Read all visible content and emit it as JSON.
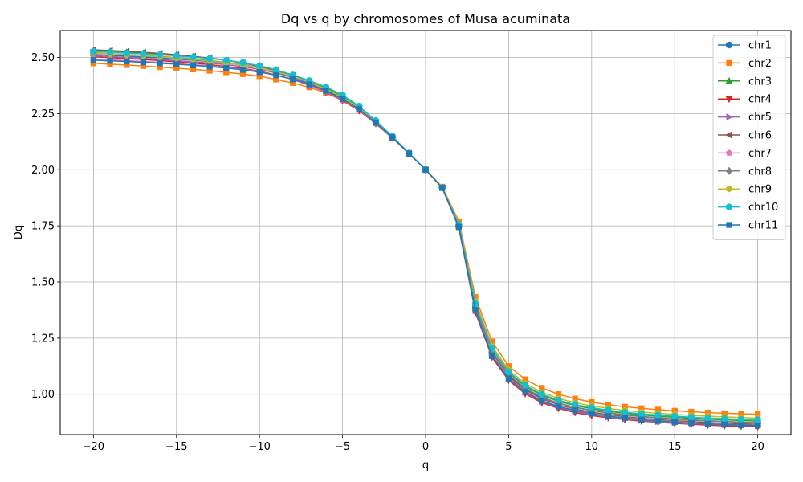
{
  "chart_data": {
    "type": "line",
    "title": "Dq vs q by chromosomes of Musa acuminata",
    "xlabel": "q",
    "ylabel": "Dq",
    "xlim": [
      -22,
      22
    ],
    "ylim": [
      0.82,
      2.62
    ],
    "xticks": [
      -20,
      -15,
      -10,
      -5,
      0,
      5,
      10,
      15,
      20
    ],
    "xtick_labels": [
      "−20",
      "−15",
      "−10",
      "−5",
      "0",
      "5",
      "10",
      "15",
      "20"
    ],
    "yticks": [
      1.0,
      1.25,
      1.5,
      1.75,
      2.0,
      2.25,
      2.5
    ],
    "ytick_labels": [
      "1.00",
      "1.25",
      "1.50",
      "1.75",
      "2.00",
      "2.25",
      "2.50"
    ],
    "grid": true,
    "legend_position": "top-right",
    "x": [
      -20,
      -19,
      -18,
      -17,
      -16,
      -15,
      -14,
      -13,
      -12,
      -11,
      -10,
      -9,
      -8,
      -7,
      -6,
      -5,
      -4,
      -3,
      -2,
      -1,
      0,
      1,
      2,
      3,
      4,
      5,
      6,
      7,
      8,
      9,
      10,
      11,
      12,
      13,
      14,
      15,
      16,
      17,
      18,
      19,
      20
    ],
    "series": [
      {
        "name": "chr1",
        "color": "#1f77b4",
        "marker": "circle",
        "values": [
          2.513,
          2.51,
          2.506,
          2.502,
          2.498,
          2.493,
          2.488,
          2.482,
          2.475,
          2.466,
          2.454,
          2.437,
          2.414,
          2.384,
          2.353,
          2.317,
          2.272,
          2.212,
          2.145,
          2.073,
          2.0,
          1.921,
          1.75,
          1.385,
          1.185,
          1.085,
          1.025,
          0.985,
          0.96,
          0.942,
          0.928,
          0.917,
          0.908,
          0.901,
          0.895,
          0.89,
          0.886,
          0.882,
          0.879,
          0.876,
          0.873
        ]
      },
      {
        "name": "chr2",
        "color": "#ff7f0e",
        "marker": "square",
        "values": [
          2.474,
          2.47,
          2.466,
          2.462,
          2.457,
          2.452,
          2.447,
          2.441,
          2.434,
          2.426,
          2.417,
          2.402,
          2.386,
          2.367,
          2.342,
          2.31,
          2.266,
          2.207,
          2.142,
          2.073,
          2.0,
          1.924,
          1.77,
          1.433,
          1.235,
          1.125,
          1.066,
          1.028,
          1.0,
          0.98,
          0.965,
          0.953,
          0.944,
          0.937,
          0.931,
          0.926,
          0.922,
          0.918,
          0.915,
          0.913,
          0.911
        ]
      },
      {
        "name": "chr3",
        "color": "#2ca02c",
        "marker": "triangle-up",
        "values": [
          2.53,
          2.527,
          2.523,
          2.519,
          2.515,
          2.51,
          2.504,
          2.497,
          2.488,
          2.476,
          2.46,
          2.441,
          2.418,
          2.394,
          2.364,
          2.326,
          2.277,
          2.215,
          2.147,
          2.074,
          2.0,
          1.92,
          1.752,
          1.405,
          1.205,
          1.095,
          1.035,
          0.995,
          0.968,
          0.95,
          0.935,
          0.924,
          0.915,
          0.908,
          0.902,
          0.897,
          0.893,
          0.889,
          0.886,
          0.883,
          0.88
        ]
      },
      {
        "name": "chr4",
        "color": "#d62728",
        "marker": "triangle-down",
        "values": [
          2.503,
          2.499,
          2.495,
          2.491,
          2.486,
          2.481,
          2.475,
          2.468,
          2.46,
          2.451,
          2.439,
          2.422,
          2.402,
          2.376,
          2.346,
          2.308,
          2.263,
          2.205,
          2.141,
          2.072,
          2.0,
          1.92,
          1.742,
          1.364,
          1.165,
          1.062,
          1.002,
          0.962,
          0.937,
          0.918,
          0.905,
          0.895,
          0.887,
          0.88,
          0.875,
          0.87,
          0.866,
          0.862,
          0.859,
          0.857,
          0.855
        ]
      },
      {
        "name": "chr5",
        "color": "#9467bd",
        "marker": "triangle-right",
        "values": [
          2.508,
          2.504,
          2.5,
          2.496,
          2.491,
          2.486,
          2.481,
          2.475,
          2.468,
          2.459,
          2.447,
          2.431,
          2.41,
          2.383,
          2.352,
          2.314,
          2.268,
          2.209,
          2.143,
          2.072,
          2.0,
          1.92,
          1.745,
          1.372,
          1.172,
          1.068,
          1.008,
          0.968,
          0.942,
          0.923,
          0.91,
          0.899,
          0.89,
          0.883,
          0.878,
          0.873,
          0.869,
          0.866,
          0.863,
          0.861,
          0.859
        ]
      },
      {
        "name": "chr6",
        "color": "#8c564b",
        "marker": "triangle-left",
        "values": [
          2.534,
          2.531,
          2.527,
          2.523,
          2.518,
          2.512,
          2.505,
          2.497,
          2.487,
          2.475,
          2.461,
          2.443,
          2.42,
          2.393,
          2.362,
          2.322,
          2.274,
          2.213,
          2.146,
          2.073,
          2.0,
          1.92,
          1.748,
          1.385,
          1.185,
          1.08,
          1.02,
          0.98,
          0.953,
          0.934,
          0.92,
          0.909,
          0.9,
          0.893,
          0.887,
          0.882,
          0.878,
          0.874,
          0.871,
          0.868,
          0.866
        ]
      },
      {
        "name": "chr7",
        "color": "#e377c2",
        "marker": "pentagon",
        "values": [
          2.493,
          2.49,
          2.486,
          2.482,
          2.478,
          2.473,
          2.468,
          2.462,
          2.455,
          2.447,
          2.436,
          2.421,
          2.402,
          2.377,
          2.348,
          2.312,
          2.267,
          2.208,
          2.143,
          2.072,
          2.0,
          1.92,
          1.746,
          1.378,
          1.178,
          1.073,
          1.013,
          0.973,
          0.946,
          0.927,
          0.913,
          0.902,
          0.893,
          0.886,
          0.88,
          0.875,
          0.871,
          0.868,
          0.865,
          0.863,
          0.861
        ]
      },
      {
        "name": "chr8",
        "color": "#7f7f7f",
        "marker": "diamond",
        "values": [
          2.521,
          2.517,
          2.513,
          2.509,
          2.504,
          2.499,
          2.493,
          2.486,
          2.478,
          2.468,
          2.455,
          2.438,
          2.416,
          2.389,
          2.358,
          2.32,
          2.273,
          2.212,
          2.145,
          2.073,
          2.0,
          1.92,
          1.75,
          1.4,
          1.192,
          1.087,
          1.027,
          0.987,
          0.96,
          0.941,
          0.927,
          0.916,
          0.907,
          0.9,
          0.894,
          0.889,
          0.885,
          0.881,
          0.878,
          0.875,
          0.873
        ]
      },
      {
        "name": "chr9",
        "color": "#bcbd22",
        "marker": "hexagon",
        "values": [
          2.52,
          2.516,
          2.512,
          2.508,
          2.503,
          2.497,
          2.491,
          2.484,
          2.476,
          2.466,
          2.454,
          2.437,
          2.416,
          2.39,
          2.36,
          2.322,
          2.275,
          2.214,
          2.146,
          2.073,
          2.0,
          1.921,
          1.758,
          1.415,
          1.215,
          1.108,
          1.048,
          1.008,
          0.981,
          0.962,
          0.948,
          0.937,
          0.928,
          0.921,
          0.915,
          0.91,
          0.906,
          0.902,
          0.899,
          0.896,
          0.894
        ]
      },
      {
        "name": "chr10",
        "color": "#17becf",
        "marker": "circle",
        "values": [
          2.527,
          2.524,
          2.52,
          2.516,
          2.512,
          2.507,
          2.501,
          2.495,
          2.487,
          2.477,
          2.463,
          2.445,
          2.422,
          2.397,
          2.369,
          2.333,
          2.283,
          2.219,
          2.149,
          2.074,
          2.0,
          1.92,
          1.755,
          1.403,
          1.205,
          1.1,
          1.04,
          1.0,
          0.973,
          0.954,
          0.94,
          0.929,
          0.92,
          0.913,
          0.907,
          0.902,
          0.898,
          0.894,
          0.891,
          0.888,
          0.886
        ]
      },
      {
        "name": "chr11",
        "color": "#1f77b4",
        "marker": "square",
        "values": [
          2.488,
          2.485,
          2.482,
          2.478,
          2.474,
          2.47,
          2.465,
          2.459,
          2.453,
          2.445,
          2.435,
          2.421,
          2.403,
          2.38,
          2.351,
          2.315,
          2.27,
          2.21,
          2.144,
          2.072,
          2.0,
          1.919,
          1.745,
          1.375,
          1.17,
          1.07,
          1.01,
          0.97,
          0.945,
          0.928,
          0.914,
          0.903,
          0.894,
          0.887,
          0.881,
          0.876,
          0.872,
          0.868,
          0.865,
          0.862,
          0.86
        ]
      }
    ]
  }
}
